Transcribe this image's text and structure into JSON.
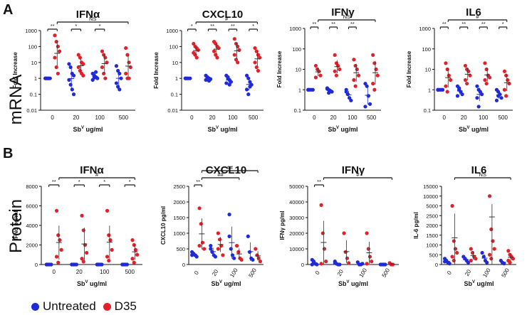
{
  "figure": {
    "row_labels": [
      {
        "letter": "A",
        "title": "mRNA"
      },
      {
        "letter": "B",
        "title": "Protein"
      }
    ],
    "x_axis_label_main": "Sb",
    "x_axis_label_sup": "V",
    "x_axis_label_unit": " ug/ml",
    "legend": [
      {
        "label": "Untreated",
        "color": "#1f2bd6"
      },
      {
        "label": "D35",
        "color": "#e3202a"
      }
    ]
  },
  "chart_data": [
    {
      "type": "scatter",
      "scale": "log",
      "title": "IFNα",
      "ylabel": "Fold Increase",
      "ylim": [
        0.01,
        1000
      ],
      "yticks": [
        {
          "v": 0.01,
          "t": "0.01"
        },
        {
          "v": 0.1,
          "t": "0.1"
        },
        {
          "v": 1,
          "t": "1"
        },
        {
          "v": 10,
          "t": "10"
        },
        {
          "v": 100,
          "t": "100"
        },
        {
          "v": 1000,
          "t": "1000"
        }
      ],
      "categories": [
        "0",
        "20",
        "100",
        "500"
      ],
      "series": [
        {
          "name": "Untreated",
          "groups": [
            [
              1,
              1,
              1,
              1,
              1,
              1,
              1
            ],
            [
              8,
              5,
              2,
              1.5,
              0.8,
              0.4,
              0.2,
              0.1
            ],
            [
              2,
              1.5,
              1.2,
              1,
              0.8,
              1.1,
              2.5
            ],
            [
              6,
              3,
              2,
              1,
              0.5,
              0.3,
              0.2
            ]
          ]
        },
        {
          "name": "D35",
          "groups": [
            [
              500,
              200,
              100,
              50,
              20,
              5,
              2
            ],
            [
              30,
              20,
              10,
              8,
              5,
              3,
              2,
              1.5
            ],
            [
              50,
              30,
              20,
              10,
              5,
              2,
              1
            ],
            [
              80,
              30,
              10,
              5,
              2,
              1,
              1
            ]
          ]
        }
      ],
      "brackets": [
        {
          "x1": 0,
          "x2": 0.5,
          "label": "**"
        },
        {
          "x1": 1,
          "x2": 1.5,
          "label": "*"
        },
        {
          "x1": 2,
          "x2": 2.5,
          "label": "*"
        },
        {
          "x1": 0.5,
          "x2": 3.5,
          "label": "NS",
          "level": 2
        }
      ]
    },
    {
      "type": "scatter",
      "scale": "log",
      "title": "CXCL10",
      "ylabel": "Fold Increase",
      "ylim": [
        0.01,
        1000
      ],
      "yticks": [
        {
          "v": 0.01,
          "t": "0.01"
        },
        {
          "v": 0.1,
          "t": "0.1"
        },
        {
          "v": 1,
          "t": "1"
        },
        {
          "v": 10,
          "t": "10"
        },
        {
          "v": 100,
          "t": "100"
        },
        {
          "v": 1000,
          "t": "1000"
        }
      ],
      "categories": [
        "0",
        "20",
        "100",
        "500"
      ],
      "series": [
        {
          "name": "Untreated",
          "groups": [
            [
              1,
              1,
              1,
              1,
              1,
              1
            ],
            [
              1.5,
              1.2,
              1,
              0.9,
              0.8,
              1.1,
              0.7
            ],
            [
              1.5,
              1,
              0.8,
              0.6,
              0.5,
              1.2,
              0.4
            ],
            [
              1.5,
              1,
              0.6,
              0.4,
              0.2,
              0.1,
              0.3
            ]
          ]
        },
        {
          "name": "D35",
          "groups": [
            [
              150,
              100,
              80,
              60,
              40,
              30,
              20
            ],
            [
              200,
              150,
              100,
              80,
              50,
              30,
              20
            ],
            [
              300,
              150,
              100,
              60,
              30,
              15,
              10
            ],
            [
              80,
              50,
              30,
              20,
              10,
              5,
              3
            ]
          ]
        }
      ],
      "brackets": [
        {
          "x1": 0,
          "x2": 0.5,
          "label": "*"
        },
        {
          "x1": 1,
          "x2": 1.5,
          "label": "**"
        },
        {
          "x1": 2,
          "x2": 2.5,
          "label": "**"
        },
        {
          "x1": 3,
          "x2": 3.5,
          "label": "*"
        },
        {
          "x1": 0.5,
          "x2": 3.5,
          "label": "#",
          "level": 2
        }
      ]
    },
    {
      "type": "scatter",
      "scale": "log",
      "title": "IFNγ",
      "ylabel": "Fold Increase",
      "ylim": [
        0.1,
        1000
      ],
      "yticks": [
        {
          "v": 0.1,
          "t": "0.1"
        },
        {
          "v": 1,
          "t": "1"
        },
        {
          "v": 10,
          "t": "10"
        },
        {
          "v": 100,
          "t": "100"
        },
        {
          "v": 1000,
          "t": "1000"
        }
      ],
      "categories": [
        "0",
        "20",
        "100",
        "500"
      ],
      "series": [
        {
          "name": "Untreated",
          "groups": [
            [
              1,
              1,
              1,
              1,
              1
            ],
            [
              1.2,
              1,
              0.9,
              0.8,
              1.1,
              0.7
            ],
            [
              1,
              0.6,
              0.4,
              0.3,
              0.8
            ],
            [
              2,
              1.5,
              0.5,
              0.2,
              0.15
            ]
          ]
        },
        {
          "name": "D35",
          "groups": [
            [
              15,
              10,
              8,
              5,
              4
            ],
            [
              50,
              20,
              15,
              10,
              8,
              5
            ],
            [
              30,
              15,
              10,
              5,
              3,
              1.5
            ],
            [
              50,
              20,
              10,
              5,
              2,
              1
            ]
          ]
        }
      ],
      "brackets": [
        {
          "x1": 0,
          "x2": 0.5,
          "label": "**"
        },
        {
          "x1": 1,
          "x2": 1.5,
          "label": "**"
        },
        {
          "x1": 2,
          "x2": 2.5,
          "label": "**"
        },
        {
          "x1": 0.5,
          "x2": 3.5,
          "label": "NS",
          "level": 2
        }
      ]
    },
    {
      "type": "scatter",
      "scale": "log",
      "title": "IL6",
      "ylabel": "Fold Increase",
      "ylim": [
        0.1,
        1000
      ],
      "yticks": [
        {
          "v": 0.1,
          "t": "0.1"
        },
        {
          "v": 1,
          "t": "1"
        },
        {
          "v": 10,
          "t": "10"
        },
        {
          "v": 100,
          "t": "100"
        },
        {
          "v": 1000,
          "t": "1000"
        }
      ],
      "categories": [
        "0",
        "20",
        "100",
        "500"
      ],
      "series": [
        {
          "name": "Untreated",
          "groups": [
            [
              1,
              1,
              1,
              1,
              1
            ],
            [
              1.5,
              1,
              0.8,
              0.6,
              0.5,
              1.2
            ],
            [
              1.5,
              1,
              0.8,
              0.6,
              0.4,
              0.15
            ],
            [
              1,
              0.8,
              0.6,
              0.4,
              0.3,
              0.5
            ]
          ]
        },
        {
          "name": "D35",
          "groups": [
            [
              20,
              10,
              5,
              3,
              1.5,
              0.8
            ],
            [
              15,
              10,
              8,
              5,
              3,
              2
            ],
            [
              20,
              10,
              5,
              4,
              3,
              2
            ],
            [
              8,
              5,
              3,
              2,
              1,
              0.5
            ]
          ]
        }
      ],
      "brackets": [
        {
          "x1": 0,
          "x2": 0.5,
          "label": "**"
        },
        {
          "x1": 1,
          "x2": 1.5,
          "label": "**"
        },
        {
          "x1": 2,
          "x2": 2.5,
          "label": "**"
        },
        {
          "x1": 3,
          "x2": 3.5,
          "label": "*"
        },
        {
          "x1": 0.5,
          "x2": 3.5,
          "label": "#",
          "level": 2
        }
      ]
    },
    {
      "type": "scatter",
      "scale": "linear",
      "title": "IFNα",
      "ylabel": "IFNα pg/ml",
      "ylim": [
        0,
        8000
      ],
      "yticks": [
        {
          "v": 0,
          "t": "0"
        },
        {
          "v": 2000,
          "t": "2000"
        },
        {
          "v": 4000,
          "t": "4000"
        },
        {
          "v": 6000,
          "t": "6000"
        },
        {
          "v": 8000,
          "t": "8000"
        }
      ],
      "categories": [
        "0",
        "20",
        "100",
        "500"
      ],
      "series": [
        {
          "name": "Untreated",
          "groups": [
            [
              0,
              0,
              0,
              0,
              0,
              0
            ],
            [
              0,
              0,
              0,
              0,
              0,
              0
            ],
            [
              0,
              0,
              0,
              0,
              0,
              0
            ],
            [
              0,
              0,
              0,
              0,
              0,
              0
            ]
          ]
        },
        {
          "name": "D35",
          "groups": [
            [
              5500,
              3000,
              2500,
              1500,
              800,
              200
            ],
            [
              5000,
              3500,
              2000,
              1200,
              600,
              300
            ],
            [
              5500,
              3000,
              2500,
              1500,
              800,
              400
            ],
            [
              2500,
              2000,
              1500,
              1000,
              600,
              200
            ]
          ]
        }
      ],
      "brackets": [
        {
          "x1": 0,
          "x2": 0.5,
          "label": "**"
        },
        {
          "x1": 1,
          "x2": 1.5,
          "label": "*"
        },
        {
          "x1": 2,
          "x2": 2.5,
          "label": "*"
        },
        {
          "x1": 3,
          "x2": 3.5,
          "label": "*"
        },
        {
          "x1": 0.5,
          "x2": 3.5,
          "label": "#",
          "level": 2
        }
      ]
    },
    {
      "type": "scatter",
      "scale": "linear",
      "title": "CXCL10",
      "ylabel": "CXCL10 pg/ml",
      "ylim": [
        0,
        2500
      ],
      "yticks": [
        {
          "v": 0,
          "t": "0"
        },
        {
          "v": 500,
          "t": "500"
        },
        {
          "v": 1000,
          "t": "1000"
        },
        {
          "v": 1500,
          "t": "1500"
        },
        {
          "v": 2000,
          "t": "2000"
        },
        {
          "v": 2500,
          "t": "2500"
        }
      ],
      "categories": [
        "0",
        "20",
        "100",
        "500"
      ],
      "series": [
        {
          "name": "Untreated",
          "groups": [
            [
              400,
              350,
              300,
              250,
              300
            ],
            [
              500,
              400,
              300,
              250,
              600
            ],
            [
              1600,
              500,
              300,
              200,
              900
            ],
            [
              900,
              400,
              200,
              150
            ]
          ]
        },
        {
          "name": "D35",
          "groups": [
            [
              1800,
              1300,
              700,
              500,
              600
            ],
            [
              1000,
              800,
              600,
              300,
              500
            ],
            [
              600,
              400,
              200,
              150
            ],
            [
              500,
              300,
              200,
              100
            ]
          ]
        }
      ],
      "brackets": [
        {
          "x1": 0,
          "x2": 0.5,
          "label": "**"
        },
        {
          "x1": 0.5,
          "x2": 2.5,
          "label": "##",
          "level": 2
        },
        {
          "x1": 0.5,
          "x2": 3.5,
          "label": "##",
          "level": 3
        }
      ]
    },
    {
      "type": "scatter",
      "scale": "linear",
      "title": "IFNγ",
      "ylabel": "IFNγ pg/ml",
      "ylim": [
        0,
        50000
      ],
      "yticks": [
        {
          "v": 0,
          "t": "0"
        },
        {
          "v": 10000,
          "t": "10000"
        },
        {
          "v": 20000,
          "t": "20000"
        },
        {
          "v": 30000,
          "t": "30000"
        },
        {
          "v": 40000,
          "t": "40000"
        },
        {
          "v": 50000,
          "t": "50000"
        }
      ],
      "categories": [
        "0",
        "20",
        "100",
        "500"
      ],
      "series": [
        {
          "name": "Untreated",
          "groups": [
            [
              3000,
              1000,
              500,
              0,
              0,
              2000
            ],
            [
              2000,
              500,
              0,
              0,
              1000
            ],
            [
              1500,
              0,
              0,
              500
            ],
            [
              0,
              0,
              0,
              0
            ]
          ]
        },
        {
          "name": "D35",
          "groups": [
            [
              38000,
              20000,
              10000,
              2000,
              500
            ],
            [
              20000,
              8000,
              4000,
              1000
            ],
            [
              20000,
              10000,
              5000,
              2000,
              500
            ],
            [
              1000,
              0,
              0
            ]
          ]
        }
      ],
      "brackets": [
        {
          "x1": 0,
          "x2": 0.5,
          "label": "**"
        },
        {
          "x1": 0.5,
          "x2": 3.5,
          "label": "#",
          "level": 2
        }
      ]
    },
    {
      "type": "scatter",
      "scale": "ticks",
      "title": "IL6",
      "ylabel": "IL-6 pg/ml",
      "ylim": [
        0,
        15000
      ],
      "yticks": [
        {
          "v": 0,
          "t": "0"
        },
        {
          "v": 500,
          "t": "500"
        },
        {
          "v": 1000,
          "t": "1000"
        },
        {
          "v": 1500,
          "t": "1500"
        },
        {
          "v": 2000,
          "t": "2000"
        },
        {
          "v": 2500,
          "t": "2500"
        },
        {
          "v": 5000,
          "t": "5000"
        },
        {
          "v": 10000,
          "t": "10000"
        },
        {
          "v": 15000,
          "t": "15000"
        }
      ],
      "categories": [
        "0",
        "20",
        "100",
        "500"
      ],
      "series": [
        {
          "name": "Untreated",
          "groups": [
            [
              300,
              200,
              100,
              50,
              150
            ],
            [
              400,
              300,
              200,
              100
            ],
            [
              600,
              400,
              200,
              100
            ],
            [
              200,
              100,
              50
            ]
          ]
        },
        {
          "name": "D35",
          "groups": [
            [
              5000,
              1200,
              800,
              600,
              400,
              200
            ],
            [
              800,
              600,
              400,
              300,
              200
            ],
            [
              10000,
              1800,
              1200,
              800,
              500,
              300
            ],
            [
              700,
              500,
              400,
              300,
              200,
              100
            ]
          ]
        }
      ],
      "brackets": [
        {
          "x1": 0.5,
          "x2": 3.5,
          "label": "NS",
          "level": 2
        }
      ]
    }
  ]
}
